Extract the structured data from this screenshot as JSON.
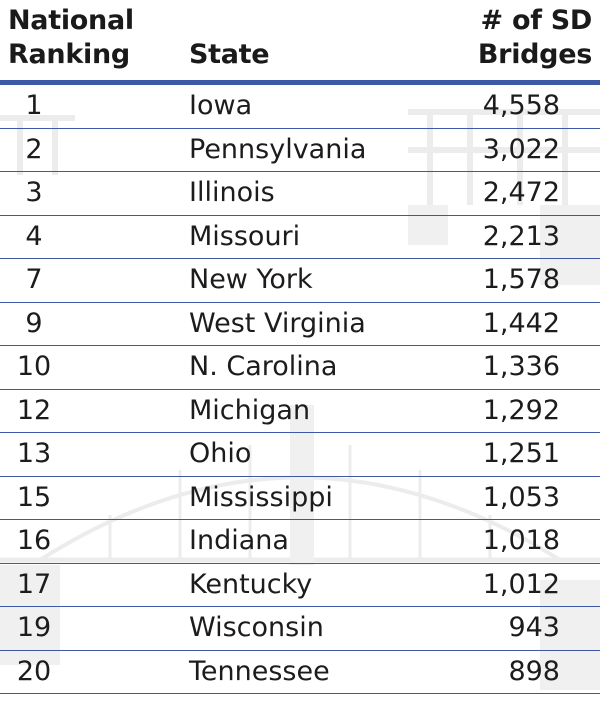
{
  "header": {
    "ranking_label": "National Ranking",
    "state_label": "State",
    "count_label": "# of SD Bridges"
  },
  "rows": [
    {
      "rank": "1",
      "state": "Iowa",
      "count": "4,558"
    },
    {
      "rank": "2",
      "state": "Pennsylvania",
      "count": "3,022"
    },
    {
      "rank": "3",
      "state": "Illinois",
      "count": "2,472"
    },
    {
      "rank": "4",
      "state": "Missouri",
      "count": "2,213"
    },
    {
      "rank": "7",
      "state": "New York",
      "count": "1,578"
    },
    {
      "rank": "9",
      "state": "West Virginia",
      "count": "1,442"
    },
    {
      "rank": "10",
      "state": "N. Carolina",
      "count": "1,336"
    },
    {
      "rank": "12",
      "state": "Michigan",
      "count": "1,292"
    },
    {
      "rank": "13",
      "state": "Ohio",
      "count": "1,251"
    },
    {
      "rank": "15",
      "state": "Mississippi",
      "count": "1,053"
    },
    {
      "rank": "16",
      "state": "Indiana",
      "count": "1,018"
    },
    {
      "rank": "17",
      "state": "Kentucky",
      "count": "1,012"
    },
    {
      "rank": "19",
      "state": "Wisconsin",
      "count": "943"
    },
    {
      "rank": "20",
      "state": "Tennessee",
      "count": "898"
    }
  ],
  "colors": {
    "rule": "#3d58a5",
    "text": "#1c1c1c",
    "watermark": "#eeeeee"
  },
  "watermark_icon": "bridge-silhouette-icon"
}
